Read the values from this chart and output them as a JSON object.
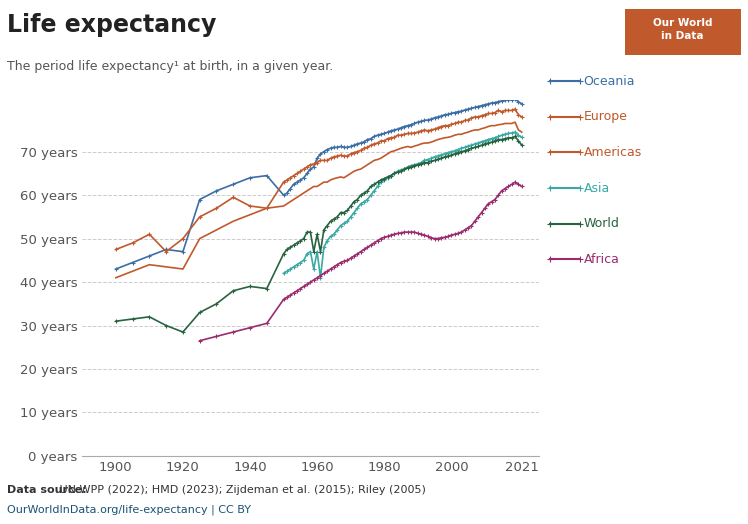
{
  "title": "Life expectancy",
  "subtitle": "The period life expectancy¹ at birth, in a given year.",
  "yticks": [
    0,
    10,
    20,
    30,
    40,
    50,
    60,
    70
  ],
  "xlim": [
    1890,
    2026
  ],
  "ylim": [
    0,
    82
  ],
  "background_color": "#ffffff",
  "data_source_bold": "Data source:",
  "data_source_rest": " UN WPP (2022); HMD (2023); Zijdeman et al. (2015); Riley (2005)",
  "url": "OurWorldInData.org/life-expectancy | CC BY",
  "series": {
    "Oceania": {
      "color": "#3b6ea5",
      "marker": true,
      "data": {
        "1900": 43.0,
        "1905": 44.5,
        "1910": 46.0,
        "1915": 47.5,
        "1920": 47.0,
        "1925": 59.0,
        "1930": 61.0,
        "1935": 62.5,
        "1940": 64.0,
        "1945": 64.5,
        "1950": 60.0,
        "1951": 60.5,
        "1952": 61.5,
        "1953": 62.5,
        "1954": 63.0,
        "1955": 63.5,
        "1956": 64.0,
        "1957": 65.0,
        "1958": 66.0,
        "1959": 66.5,
        "1960": 68.5,
        "1961": 69.5,
        "1962": 70.0,
        "1963": 70.5,
        "1964": 70.8,
        "1965": 71.0,
        "1966": 71.0,
        "1967": 71.2,
        "1968": 71.0,
        "1969": 71.0,
        "1970": 71.2,
        "1971": 71.5,
        "1972": 71.8,
        "1973": 72.0,
        "1974": 72.3,
        "1975": 72.8,
        "1976": 73.0,
        "1977": 73.5,
        "1978": 73.8,
        "1979": 74.0,
        "1980": 74.2,
        "1981": 74.5,
        "1982": 74.8,
        "1983": 75.0,
        "1984": 75.2,
        "1985": 75.5,
        "1986": 75.8,
        "1987": 76.0,
        "1988": 76.2,
        "1989": 76.5,
        "1990": 76.8,
        "1991": 77.0,
        "1992": 77.2,
        "1993": 77.3,
        "1994": 77.5,
        "1995": 77.8,
        "1996": 78.0,
        "1997": 78.2,
        "1998": 78.5,
        "1999": 78.6,
        "2000": 78.8,
        "2001": 79.0,
        "2002": 79.2,
        "2003": 79.3,
        "2004": 79.6,
        "2005": 79.8,
        "2006": 80.0,
        "2007": 80.2,
        "2008": 80.4,
        "2009": 80.6,
        "2010": 80.8,
        "2011": 81.0,
        "2012": 81.2,
        "2013": 81.3,
        "2014": 81.5,
        "2015": 81.7,
        "2016": 81.8,
        "2017": 82.0,
        "2018": 82.0,
        "2019": 82.2,
        "2020": 81.5,
        "2021": 81.0
      }
    },
    "Europe": {
      "color": "#c0592b",
      "marker": true,
      "data": {
        "1900": 47.5,
        "1905": 49.0,
        "1910": 51.0,
        "1915": 47.0,
        "1920": 50.0,
        "1925": 55.0,
        "1930": 57.0,
        "1935": 59.5,
        "1940": 57.5,
        "1945": 57.0,
        "1950": 63.0,
        "1951": 63.5,
        "1952": 64.0,
        "1953": 64.5,
        "1954": 65.0,
        "1955": 65.5,
        "1956": 66.0,
        "1957": 66.5,
        "1958": 67.0,
        "1959": 67.2,
        "1960": 67.5,
        "1961": 68.0,
        "1962": 68.0,
        "1963": 68.0,
        "1964": 68.5,
        "1965": 68.8,
        "1966": 69.0,
        "1967": 69.2,
        "1968": 69.0,
        "1969": 69.0,
        "1970": 69.5,
        "1971": 69.8,
        "1972": 70.0,
        "1973": 70.3,
        "1974": 70.8,
        "1975": 71.0,
        "1976": 71.5,
        "1977": 71.8,
        "1978": 72.0,
        "1979": 72.5,
        "1980": 72.5,
        "1981": 73.0,
        "1982": 73.2,
        "1983": 73.3,
        "1984": 73.8,
        "1985": 73.8,
        "1986": 74.0,
        "1987": 74.2,
        "1988": 74.2,
        "1989": 74.3,
        "1990": 74.5,
        "1991": 74.8,
        "1992": 75.0,
        "1993": 74.8,
        "1994": 75.0,
        "1995": 75.2,
        "1996": 75.5,
        "1997": 75.8,
        "1998": 76.0,
        "1999": 76.0,
        "2000": 76.3,
        "2001": 76.5,
        "2002": 76.8,
        "2003": 76.8,
        "2004": 77.2,
        "2005": 77.3,
        "2006": 77.8,
        "2007": 78.0,
        "2008": 78.0,
        "2009": 78.3,
        "2010": 78.5,
        "2011": 78.8,
        "2012": 78.8,
        "2013": 79.0,
        "2014": 79.5,
        "2015": 79.2,
        "2016": 79.5,
        "2017": 79.5,
        "2018": 79.5,
        "2019": 79.8,
        "2020": 78.5,
        "2021": 78.0
      }
    },
    "Americas": {
      "color": "#c0592b",
      "marker": false,
      "data": {
        "1900": 41.0,
        "1905": 42.5,
        "1910": 44.0,
        "1915": 43.5,
        "1920": 43.0,
        "1925": 50.0,
        "1930": 52.0,
        "1935": 54.0,
        "1940": 55.5,
        "1945": 57.0,
        "1950": 57.5,
        "1951": 58.0,
        "1952": 58.5,
        "1953": 59.0,
        "1954": 59.5,
        "1955": 60.0,
        "1956": 60.5,
        "1957": 61.0,
        "1958": 61.5,
        "1959": 62.0,
        "1960": 62.0,
        "1961": 62.5,
        "1962": 63.0,
        "1963": 63.0,
        "1964": 63.5,
        "1965": 63.8,
        "1966": 64.0,
        "1967": 64.2,
        "1968": 64.0,
        "1969": 64.5,
        "1970": 65.0,
        "1971": 65.5,
        "1972": 65.8,
        "1973": 66.0,
        "1974": 66.5,
        "1975": 67.0,
        "1976": 67.5,
        "1977": 68.0,
        "1978": 68.2,
        "1979": 68.5,
        "1980": 69.0,
        "1981": 69.5,
        "1982": 70.0,
        "1983": 70.2,
        "1984": 70.5,
        "1985": 70.8,
        "1986": 71.0,
        "1987": 71.2,
        "1988": 71.0,
        "1989": 71.3,
        "1990": 71.5,
        "1991": 71.8,
        "1992": 72.0,
        "1993": 72.0,
        "1994": 72.2,
        "1995": 72.5,
        "1996": 72.8,
        "1997": 73.0,
        "1998": 73.2,
        "1999": 73.3,
        "2000": 73.5,
        "2001": 73.8,
        "2002": 74.0,
        "2003": 74.0,
        "2004": 74.3,
        "2005": 74.5,
        "2006": 74.8,
        "2007": 75.0,
        "2008": 75.0,
        "2009": 75.3,
        "2010": 75.5,
        "2011": 75.8,
        "2012": 76.0,
        "2013": 76.0,
        "2014": 76.2,
        "2015": 76.3,
        "2016": 76.5,
        "2017": 76.5,
        "2018": 76.5,
        "2019": 76.8,
        "2020": 75.0,
        "2021": 74.5
      }
    },
    "Asia": {
      "color": "#3aa8a4",
      "marker": true,
      "data": {
        "1950": 42.0,
        "1951": 42.5,
        "1952": 43.0,
        "1953": 43.5,
        "1954": 44.0,
        "1955": 44.5,
        "1956": 45.0,
        "1957": 46.5,
        "1958": 47.0,
        "1959": 43.0,
        "1960": 47.0,
        "1961": 41.0,
        "1962": 48.0,
        "1963": 49.5,
        "1964": 50.5,
        "1965": 51.0,
        "1966": 52.0,
        "1967": 53.0,
        "1968": 53.5,
        "1969": 54.0,
        "1970": 55.0,
        "1971": 56.0,
        "1972": 57.0,
        "1973": 58.0,
        "1974": 58.5,
        "1975": 59.0,
        "1976": 60.0,
        "1977": 61.0,
        "1978": 62.0,
        "1979": 63.0,
        "1980": 63.5,
        "1981": 64.0,
        "1982": 64.5,
        "1983": 65.0,
        "1984": 65.5,
        "1985": 65.8,
        "1986": 66.0,
        "1987": 66.5,
        "1988": 66.8,
        "1989": 67.0,
        "1990": 67.2,
        "1991": 67.5,
        "1992": 68.0,
        "1993": 68.2,
        "1994": 68.5,
        "1995": 68.8,
        "1996": 69.0,
        "1997": 69.3,
        "1998": 69.5,
        "1999": 69.8,
        "2000": 70.0,
        "2001": 70.2,
        "2002": 70.5,
        "2003": 70.8,
        "2004": 71.0,
        "2005": 71.3,
        "2006": 71.5,
        "2007": 71.8,
        "2008": 72.0,
        "2009": 72.3,
        "2010": 72.5,
        "2011": 72.8,
        "2012": 73.0,
        "2013": 73.2,
        "2014": 73.5,
        "2015": 73.8,
        "2016": 74.0,
        "2017": 74.2,
        "2018": 74.3,
        "2019": 74.5,
        "2020": 73.8,
        "2021": 73.3
      }
    },
    "World": {
      "color": "#286340",
      "marker": true,
      "data": {
        "1900": 31.0,
        "1905": 31.5,
        "1910": 32.0,
        "1915": 30.0,
        "1920": 28.5,
        "1925": 33.0,
        "1930": 35.0,
        "1935": 38.0,
        "1940": 39.0,
        "1945": 38.5,
        "1950": 46.5,
        "1951": 47.5,
        "1952": 48.0,
        "1953": 48.5,
        "1954": 49.0,
        "1955": 49.5,
        "1956": 50.0,
        "1957": 51.5,
        "1958": 51.5,
        "1959": 47.0,
        "1960": 51.0,
        "1961": 47.0,
        "1962": 52.0,
        "1963": 53.0,
        "1964": 54.0,
        "1965": 54.5,
        "1966": 55.0,
        "1967": 56.0,
        "1968": 56.0,
        "1969": 56.5,
        "1970": 57.5,
        "1971": 58.5,
        "1972": 59.0,
        "1973": 60.0,
        "1974": 60.5,
        "1975": 61.0,
        "1976": 62.0,
        "1977": 62.5,
        "1978": 63.0,
        "1979": 63.5,
        "1980": 63.8,
        "1981": 64.2,
        "1982": 64.5,
        "1983": 65.0,
        "1984": 65.3,
        "1985": 65.5,
        "1986": 66.0,
        "1987": 66.3,
        "1988": 66.5,
        "1989": 66.8,
        "1990": 67.0,
        "1991": 67.2,
        "1992": 67.5,
        "1993": 67.5,
        "1994": 67.8,
        "1995": 68.0,
        "1996": 68.3,
        "1997": 68.5,
        "1998": 68.8,
        "1999": 69.0,
        "2000": 69.2,
        "2001": 69.5,
        "2002": 69.8,
        "2003": 70.0,
        "2004": 70.2,
        "2005": 70.5,
        "2006": 70.8,
        "2007": 71.0,
        "2008": 71.2,
        "2009": 71.5,
        "2010": 71.8,
        "2011": 72.0,
        "2012": 72.2,
        "2013": 72.5,
        "2014": 72.8,
        "2015": 72.8,
        "2016": 73.0,
        "2017": 73.2,
        "2018": 73.2,
        "2019": 73.5,
        "2020": 72.5,
        "2021": 71.5
      }
    },
    "Africa": {
      "color": "#9a2b6e",
      "marker": true,
      "data": {
        "1925": 26.5,
        "1930": 27.5,
        "1935": 28.5,
        "1940": 29.5,
        "1945": 30.5,
        "1950": 36.0,
        "1951": 36.5,
        "1952": 37.0,
        "1953": 37.5,
        "1954": 38.0,
        "1955": 38.5,
        "1956": 39.0,
        "1957": 39.5,
        "1958": 40.0,
        "1959": 40.5,
        "1960": 41.0,
        "1961": 41.5,
        "1962": 42.0,
        "1963": 42.5,
        "1964": 43.0,
        "1965": 43.5,
        "1966": 44.0,
        "1967": 44.5,
        "1968": 44.8,
        "1969": 45.0,
        "1970": 45.5,
        "1971": 46.0,
        "1972": 46.5,
        "1973": 47.0,
        "1974": 47.5,
        "1975": 48.0,
        "1976": 48.5,
        "1977": 49.0,
        "1978": 49.5,
        "1979": 50.0,
        "1980": 50.3,
        "1981": 50.5,
        "1982": 50.8,
        "1983": 51.0,
        "1984": 51.2,
        "1985": 51.3,
        "1986": 51.5,
        "1987": 51.5,
        "1988": 51.5,
        "1989": 51.5,
        "1990": 51.2,
        "1991": 51.0,
        "1992": 50.8,
        "1993": 50.5,
        "1994": 50.2,
        "1995": 50.0,
        "1996": 50.0,
        "1997": 50.2,
        "1998": 50.3,
        "1999": 50.5,
        "2000": 50.8,
        "2001": 51.0,
        "2002": 51.2,
        "2003": 51.5,
        "2004": 52.0,
        "2005": 52.5,
        "2006": 53.0,
        "2007": 54.0,
        "2008": 55.0,
        "2009": 56.0,
        "2010": 57.0,
        "2011": 58.0,
        "2012": 58.5,
        "2013": 59.0,
        "2014": 60.0,
        "2015": 61.0,
        "2016": 61.5,
        "2017": 62.0,
        "2018": 62.5,
        "2019": 63.0,
        "2020": 62.5,
        "2021": 62.0
      }
    }
  },
  "legend_order": [
    "Oceania",
    "Europe",
    "Americas",
    "Asia",
    "World",
    "Africa"
  ],
  "legend_colors": {
    "Oceania": "#3b6ea5",
    "Europe": "#c0592b",
    "Americas": "#c0592b",
    "Asia": "#3aa8a4",
    "World": "#286340",
    "Africa": "#9a2b6e"
  },
  "badge_color": "#c0592b",
  "badge_text": "Our World\nin Data"
}
